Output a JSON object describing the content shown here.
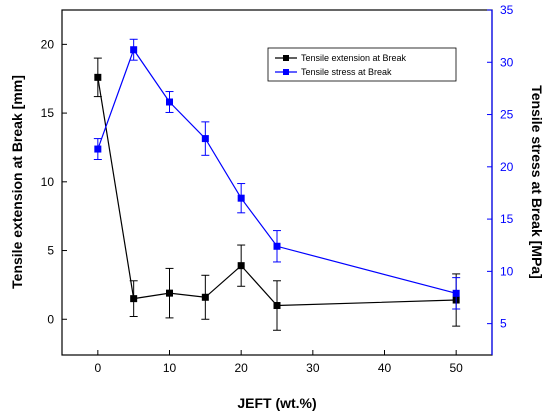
{
  "chart_data": {
    "type": "line",
    "xlabel": "JEFT (wt.%)",
    "ylabel_left": "Tensile extension at Break [mm]",
    "ylabel_right": "Tensile stress at Break [MPa]",
    "xlim": [
      -5,
      55
    ],
    "ylim_left": [
      -2.6,
      22.5
    ],
    "ylim_right": [
      2,
      35
    ],
    "xticks": [
      0,
      10,
      20,
      30,
      40,
      50
    ],
    "xtick_labels": [
      "0",
      "10",
      "20",
      "30",
      "40",
      "50"
    ],
    "yticks_left": [
      0,
      5,
      10,
      15,
      20
    ],
    "ytick_labels_left": [
      "0",
      "5",
      "10",
      "15",
      "20"
    ],
    "yticks_right": [
      5,
      10,
      15,
      20,
      25,
      30,
      35
    ],
    "ytick_labels_right": [
      "5",
      "10",
      "15",
      "20",
      "25",
      "30",
      "35"
    ],
    "legend_position": "top-right",
    "grid": false,
    "series": [
      {
        "name": "Tensile extension at Break",
        "axis": "left",
        "color": "#000000",
        "marker": "square",
        "x": [
          0,
          5,
          10,
          15,
          20,
          25,
          50
        ],
        "y": [
          17.6,
          1.5,
          1.9,
          1.6,
          3.9,
          1.0,
          1.4
        ],
        "err": [
          1.4,
          1.3,
          1.8,
          1.6,
          1.5,
          1.8,
          1.9
        ]
      },
      {
        "name": "Tensile stress at Break",
        "axis": "right",
        "color": "#0000ff",
        "marker": "square",
        "x": [
          0,
          5,
          10,
          15,
          20,
          25,
          50
        ],
        "y": [
          21.7,
          31.2,
          26.2,
          22.7,
          17.0,
          12.4,
          7.9
        ],
        "err": [
          1.0,
          1.0,
          1.0,
          1.6,
          1.4,
          1.5,
          1.5
        ]
      }
    ]
  }
}
